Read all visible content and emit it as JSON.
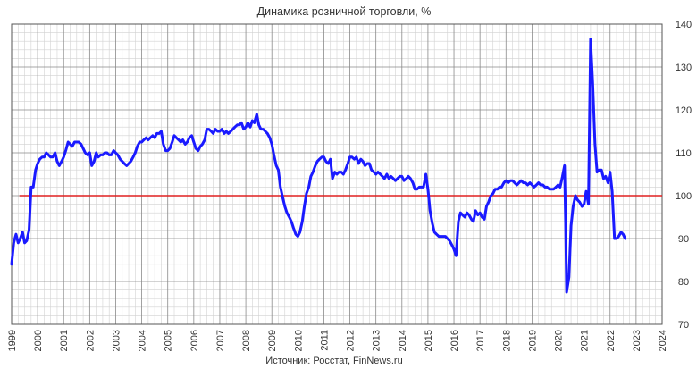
{
  "chart_data": {
    "type": "line",
    "title": "Динамика розничной торговли, %",
    "source": "Источник: Росстат, FinNews.ru",
    "xlabel": "",
    "ylabel": "",
    "xlim": [
      1999,
      2024
    ],
    "ylim": [
      70,
      140
    ],
    "x_ticks": [
      "1999",
      "2000",
      "2001",
      "2002",
      "2003",
      "2004",
      "2005",
      "2006",
      "2007",
      "2008",
      "2009",
      "2010",
      "2011",
      "2012",
      "2013",
      "2014",
      "2015",
      "2016",
      "2017",
      "2018",
      "2019",
      "2020",
      "2021",
      "2022",
      "2023",
      "2024"
    ],
    "y_ticks": [
      "140",
      "130",
      "120",
      "110",
      "100",
      "90",
      "80",
      "70"
    ],
    "y_axis_side": "right",
    "grid": true,
    "reference_line": {
      "value": 100,
      "color": "#e02020"
    },
    "series": [
      {
        "color": "#1a1aff",
        "points": [
          [
            1999.0,
            84.0
          ],
          [
            1999.08,
            89.0
          ],
          [
            1999.17,
            91.0
          ],
          [
            1999.25,
            89.0
          ],
          [
            1999.33,
            90.0
          ],
          [
            1999.42,
            91.5
          ],
          [
            1999.5,
            89.0
          ],
          [
            1999.58,
            89.5
          ],
          [
            1999.67,
            92.0
          ],
          [
            1999.75,
            102.0
          ],
          [
            1999.83,
            102.0
          ],
          [
            1999.92,
            106.0
          ],
          [
            2000.0,
            107.5
          ],
          [
            2000.08,
            108.5
          ],
          [
            2000.17,
            109.0
          ],
          [
            2000.25,
            109.0
          ],
          [
            2000.33,
            110.0
          ],
          [
            2000.42,
            109.5
          ],
          [
            2000.5,
            109.0
          ],
          [
            2000.58,
            109.0
          ],
          [
            2000.67,
            110.0
          ],
          [
            2000.75,
            108.0
          ],
          [
            2000.83,
            107.0
          ],
          [
            2000.92,
            108.0
          ],
          [
            2001.0,
            109.0
          ],
          [
            2001.08,
            110.5
          ],
          [
            2001.17,
            112.5
          ],
          [
            2001.25,
            112.0
          ],
          [
            2001.33,
            111.5
          ],
          [
            2001.42,
            112.5
          ],
          [
            2001.5,
            112.5
          ],
          [
            2001.58,
            112.5
          ],
          [
            2001.67,
            112.0
          ],
          [
            2001.75,
            111.0
          ],
          [
            2001.83,
            110.0
          ],
          [
            2001.92,
            109.5
          ],
          [
            2002.0,
            110.0
          ],
          [
            2002.08,
            107.0
          ],
          [
            2002.17,
            108.0
          ],
          [
            2002.25,
            110.0
          ],
          [
            2002.33,
            109.0
          ],
          [
            2002.42,
            109.5
          ],
          [
            2002.5,
            109.5
          ],
          [
            2002.58,
            110.0
          ],
          [
            2002.67,
            110.0
          ],
          [
            2002.75,
            109.5
          ],
          [
            2002.83,
            109.5
          ],
          [
            2002.92,
            110.5
          ],
          [
            2003.0,
            110.0
          ],
          [
            2003.08,
            109.5
          ],
          [
            2003.17,
            108.5
          ],
          [
            2003.25,
            108.0
          ],
          [
            2003.33,
            107.5
          ],
          [
            2003.42,
            107.0
          ],
          [
            2003.5,
            107.5
          ],
          [
            2003.58,
            108.0
          ],
          [
            2003.67,
            109.0
          ],
          [
            2003.75,
            110.0
          ],
          [
            2003.83,
            111.5
          ],
          [
            2003.92,
            112.5
          ],
          [
            2004.0,
            112.5
          ],
          [
            2004.08,
            113.0
          ],
          [
            2004.17,
            113.5
          ],
          [
            2004.25,
            113.0
          ],
          [
            2004.33,
            113.5
          ],
          [
            2004.42,
            114.0
          ],
          [
            2004.5,
            113.5
          ],
          [
            2004.58,
            114.5
          ],
          [
            2004.67,
            114.5
          ],
          [
            2004.75,
            115.0
          ],
          [
            2004.83,
            112.0
          ],
          [
            2004.92,
            110.5
          ],
          [
            2005.0,
            110.5
          ],
          [
            2005.08,
            111.0
          ],
          [
            2005.17,
            112.5
          ],
          [
            2005.25,
            114.0
          ],
          [
            2005.33,
            113.5
          ],
          [
            2005.42,
            113.0
          ],
          [
            2005.5,
            112.5
          ],
          [
            2005.58,
            113.0
          ],
          [
            2005.67,
            112.0
          ],
          [
            2005.75,
            112.5
          ],
          [
            2005.83,
            113.5
          ],
          [
            2005.92,
            114.0
          ],
          [
            2006.0,
            112.5
          ],
          [
            2006.08,
            111.0
          ],
          [
            2006.17,
            110.5
          ],
          [
            2006.25,
            111.5
          ],
          [
            2006.33,
            112.0
          ],
          [
            2006.42,
            113.0
          ],
          [
            2006.5,
            115.5
          ],
          [
            2006.58,
            115.5
          ],
          [
            2006.67,
            115.0
          ],
          [
            2006.75,
            114.5
          ],
          [
            2006.83,
            115.5
          ],
          [
            2006.92,
            115.0
          ],
          [
            2007.0,
            115.0
          ],
          [
            2007.08,
            115.5
          ],
          [
            2007.17,
            114.5
          ],
          [
            2007.25,
            115.0
          ],
          [
            2007.33,
            114.5
          ],
          [
            2007.42,
            115.0
          ],
          [
            2007.5,
            115.5
          ],
          [
            2007.58,
            116.0
          ],
          [
            2007.67,
            116.5
          ],
          [
            2007.75,
            116.5
          ],
          [
            2007.83,
            117.0
          ],
          [
            2007.92,
            115.5
          ],
          [
            2008.0,
            116.0
          ],
          [
            2008.08,
            117.0
          ],
          [
            2008.17,
            116.0
          ],
          [
            2008.25,
            117.5
          ],
          [
            2008.33,
            117.0
          ],
          [
            2008.42,
            119.0
          ],
          [
            2008.5,
            116.5
          ],
          [
            2008.58,
            115.5
          ],
          [
            2008.67,
            115.5
          ],
          [
            2008.75,
            115.0
          ],
          [
            2008.83,
            114.5
          ],
          [
            2008.92,
            113.5
          ],
          [
            2009.0,
            112.0
          ],
          [
            2009.08,
            109.5
          ],
          [
            2009.17,
            107.0
          ],
          [
            2009.25,
            106.0
          ],
          [
            2009.33,
            102.0
          ],
          [
            2009.42,
            99.5
          ],
          [
            2009.5,
            97.5
          ],
          [
            2009.58,
            96.0
          ],
          [
            2009.67,
            95.0
          ],
          [
            2009.75,
            94.0
          ],
          [
            2009.83,
            92.5
          ],
          [
            2009.92,
            91.0
          ],
          [
            2010.0,
            90.5
          ],
          [
            2010.08,
            91.5
          ],
          [
            2010.17,
            94.0
          ],
          [
            2010.25,
            97.5
          ],
          [
            2010.33,
            100.5
          ],
          [
            2010.42,
            102.0
          ],
          [
            2010.5,
            104.5
          ],
          [
            2010.58,
            105.5
          ],
          [
            2010.67,
            107.0
          ],
          [
            2010.75,
            108.0
          ],
          [
            2010.83,
            108.5
          ],
          [
            2010.92,
            109.0
          ],
          [
            2011.0,
            109.0
          ],
          [
            2011.08,
            108.0
          ],
          [
            2011.17,
            107.5
          ],
          [
            2011.25,
            108.5
          ],
          [
            2011.33,
            104.0
          ],
          [
            2011.42,
            105.5
          ],
          [
            2011.5,
            105.0
          ],
          [
            2011.58,
            105.5
          ],
          [
            2011.67,
            105.5
          ],
          [
            2011.75,
            105.0
          ],
          [
            2011.83,
            106.0
          ],
          [
            2011.92,
            107.5
          ],
          [
            2012.0,
            109.0
          ],
          [
            2012.08,
            109.0
          ],
          [
            2012.17,
            108.5
          ],
          [
            2012.25,
            109.0
          ],
          [
            2012.33,
            107.5
          ],
          [
            2012.42,
            108.5
          ],
          [
            2012.5,
            108.0
          ],
          [
            2012.58,
            107.0
          ],
          [
            2012.67,
            107.5
          ],
          [
            2012.75,
            107.5
          ],
          [
            2012.83,
            106.0
          ],
          [
            2012.92,
            105.5
          ],
          [
            2013.0,
            105.0
          ],
          [
            2013.08,
            105.5
          ],
          [
            2013.17,
            105.0
          ],
          [
            2013.25,
            104.5
          ],
          [
            2013.33,
            104.0
          ],
          [
            2013.42,
            105.0
          ],
          [
            2013.5,
            104.0
          ],
          [
            2013.58,
            104.5
          ],
          [
            2013.67,
            104.0
          ],
          [
            2013.75,
            103.5
          ],
          [
            2013.83,
            104.0
          ],
          [
            2013.92,
            104.5
          ],
          [
            2014.0,
            104.5
          ],
          [
            2014.08,
            103.5
          ],
          [
            2014.17,
            104.0
          ],
          [
            2014.25,
            104.5
          ],
          [
            2014.33,
            104.0
          ],
          [
            2014.42,
            103.0
          ],
          [
            2014.5,
            101.5
          ],
          [
            2014.58,
            101.5
          ],
          [
            2014.67,
            102.0
          ],
          [
            2014.75,
            102.0
          ],
          [
            2014.83,
            102.0
          ],
          [
            2014.92,
            105.0
          ],
          [
            2015.0,
            101.5
          ],
          [
            2015.08,
            96.5
          ],
          [
            2015.17,
            93.5
          ],
          [
            2015.25,
            91.5
          ],
          [
            2015.33,
            91.0
          ],
          [
            2015.42,
            90.5
          ],
          [
            2015.5,
            90.5
          ],
          [
            2015.58,
            90.5
          ],
          [
            2015.67,
            90.5
          ],
          [
            2015.75,
            90.0
          ],
          [
            2015.83,
            89.5
          ],
          [
            2015.92,
            88.5
          ],
          [
            2016.0,
            87.5
          ],
          [
            2016.08,
            86.0
          ],
          [
            2016.17,
            94.0
          ],
          [
            2016.25,
            96.0
          ],
          [
            2016.33,
            95.5
          ],
          [
            2016.42,
            95.0
          ],
          [
            2016.5,
            96.0
          ],
          [
            2016.58,
            95.5
          ],
          [
            2016.67,
            94.5
          ],
          [
            2016.75,
            94.0
          ],
          [
            2016.83,
            96.5
          ],
          [
            2016.92,
            95.5
          ],
          [
            2017.0,
            96.0
          ],
          [
            2017.08,
            95.0
          ],
          [
            2017.17,
            94.5
          ],
          [
            2017.25,
            97.5
          ],
          [
            2017.33,
            98.5
          ],
          [
            2017.42,
            100.0
          ],
          [
            2017.5,
            100.5
          ],
          [
            2017.58,
            101.5
          ],
          [
            2017.67,
            101.5
          ],
          [
            2017.75,
            102.0
          ],
          [
            2017.83,
            102.0
          ],
          [
            2017.92,
            103.0
          ],
          [
            2018.0,
            103.5
          ],
          [
            2018.08,
            103.0
          ],
          [
            2018.17,
            103.5
          ],
          [
            2018.25,
            103.5
          ],
          [
            2018.33,
            103.0
          ],
          [
            2018.42,
            102.5
          ],
          [
            2018.5,
            103.0
          ],
          [
            2018.58,
            103.5
          ],
          [
            2018.67,
            103.0
          ],
          [
            2018.75,
            103.0
          ],
          [
            2018.83,
            102.5
          ],
          [
            2018.92,
            103.0
          ],
          [
            2019.0,
            102.5
          ],
          [
            2019.08,
            102.0
          ],
          [
            2019.17,
            102.5
          ],
          [
            2019.25,
            103.0
          ],
          [
            2019.33,
            102.5
          ],
          [
            2019.42,
            102.5
          ],
          [
            2019.5,
            102.0
          ],
          [
            2019.58,
            102.0
          ],
          [
            2019.67,
            101.5
          ],
          [
            2019.75,
            101.5
          ],
          [
            2019.83,
            101.5
          ],
          [
            2019.92,
            102.0
          ],
          [
            2020.0,
            102.5
          ],
          [
            2020.08,
            102.0
          ],
          [
            2020.17,
            104.5
          ],
          [
            2020.25,
            107.0
          ],
          [
            2020.29,
            94.0
          ],
          [
            2020.33,
            77.5
          ],
          [
            2020.42,
            81.0
          ],
          [
            2020.5,
            93.0
          ],
          [
            2020.58,
            97.5
          ],
          [
            2020.67,
            100.0
          ],
          [
            2020.75,
            99.0
          ],
          [
            2020.83,
            98.5
          ],
          [
            2020.92,
            97.5
          ],
          [
            2021.0,
            98.0
          ],
          [
            2021.08,
            101.0
          ],
          [
            2021.17,
            98.0
          ],
          [
            2021.25,
            136.5
          ],
          [
            2021.33,
            126.5
          ],
          [
            2021.42,
            112.0
          ],
          [
            2021.5,
            105.5
          ],
          [
            2021.58,
            106.0
          ],
          [
            2021.67,
            106.0
          ],
          [
            2021.75,
            104.0
          ],
          [
            2021.83,
            104.5
          ],
          [
            2021.92,
            103.0
          ],
          [
            2022.0,
            105.5
          ],
          [
            2022.08,
            101.0
          ],
          [
            2022.17,
            90.0
          ],
          [
            2022.25,
            90.0
          ],
          [
            2022.33,
            90.5
          ],
          [
            2022.42,
            91.5
          ],
          [
            2022.5,
            91.0
          ],
          [
            2022.58,
            90.0
          ]
        ]
      }
    ]
  }
}
